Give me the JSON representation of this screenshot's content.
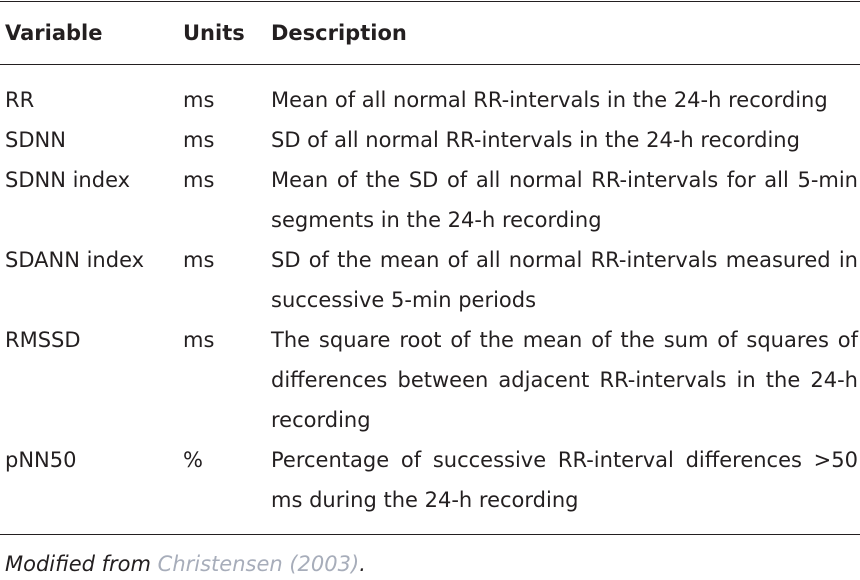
{
  "table": {
    "header": [
      "Variable",
      "Units",
      "Description"
    ],
    "rows": [
      [
        "RR",
        "ms",
        "Mean of all normal RR-intervals in the 24-h recording"
      ],
      [
        "SDNN",
        "ms",
        "SD of all normal RR-intervals in the 24-h recording"
      ],
      [
        "SDNN index",
        "ms",
        "Mean of the SD of all normal RR-intervals for all 5-min segments in the 24-h recording"
      ],
      [
        "SDANN index",
        "ms",
        "SD of the mean of all normal RR-intervals measured in successive 5-min periods"
      ],
      [
        "RMSSD",
        "ms",
        "The square root of the mean of the sum of squares of differences between adjacent RR-intervals in the 24-h recording"
      ],
      [
        "pNN50",
        "%",
        "Percentage of successive RR-interval differences >50 ms during the 24-h recording"
      ]
    ]
  },
  "footnote": {
    "prefix": "Modified from",
    "link": "Christensen (2003)",
    "suffix": "."
  }
}
